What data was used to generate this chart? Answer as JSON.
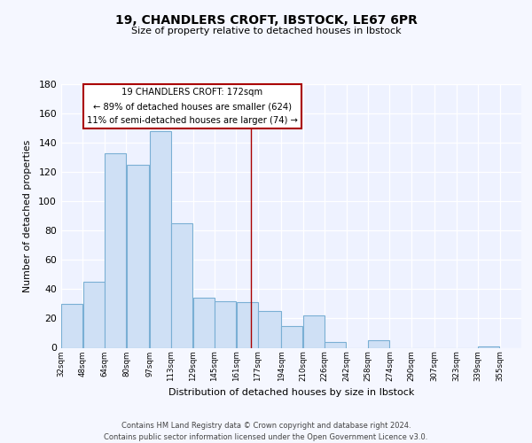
{
  "title": "19, CHANDLERS CROFT, IBSTOCK, LE67 6PR",
  "subtitle": "Size of property relative to detached houses in Ibstock",
  "xlabel": "Distribution of detached houses by size in Ibstock",
  "ylabel": "Number of detached properties",
  "bar_left_edges": [
    32,
    48,
    64,
    80,
    97,
    113,
    129,
    145,
    161,
    177,
    194,
    210,
    226,
    242,
    258,
    274,
    290,
    307,
    323,
    339
  ],
  "bar_widths": [
    16,
    16,
    16,
    17,
    16,
    16,
    16,
    16,
    16,
    17,
    16,
    16,
    16,
    16,
    16,
    16,
    17,
    16,
    16,
    16
  ],
  "bar_heights": [
    30,
    45,
    133,
    125,
    148,
    85,
    34,
    32,
    31,
    25,
    15,
    22,
    4,
    0,
    5,
    0,
    0,
    0,
    0,
    1
  ],
  "bar_color": "#cfe0f5",
  "bar_edgecolor": "#7aafd4",
  "xtick_labels": [
    "32sqm",
    "48sqm",
    "64sqm",
    "80sqm",
    "97sqm",
    "113sqm",
    "129sqm",
    "145sqm",
    "161sqm",
    "177sqm",
    "194sqm",
    "210sqm",
    "226sqm",
    "242sqm",
    "258sqm",
    "274sqm",
    "290sqm",
    "307sqm",
    "323sqm",
    "339sqm",
    "355sqm"
  ],
  "ylim": [
    0,
    180
  ],
  "yticks": [
    0,
    20,
    40,
    60,
    80,
    100,
    120,
    140,
    160,
    180
  ],
  "property_line_x": 172,
  "property_line_color": "#aa0000",
  "annotation_title": "19 CHANDLERS CROFT: 172sqm",
  "annotation_line1": "← 89% of detached houses are smaller (624)",
  "annotation_line2": "11% of semi-detached houses are larger (74) →",
  "annotation_box_color": "#ffffff",
  "annotation_box_edgecolor": "#aa0000",
  "footer1": "Contains HM Land Registry data © Crown copyright and database right 2024.",
  "footer2": "Contains public sector information licensed under the Open Government Licence v3.0.",
  "background_color": "#f5f7ff",
  "plot_background": "#eef2ff",
  "grid_color": "#ffffff"
}
